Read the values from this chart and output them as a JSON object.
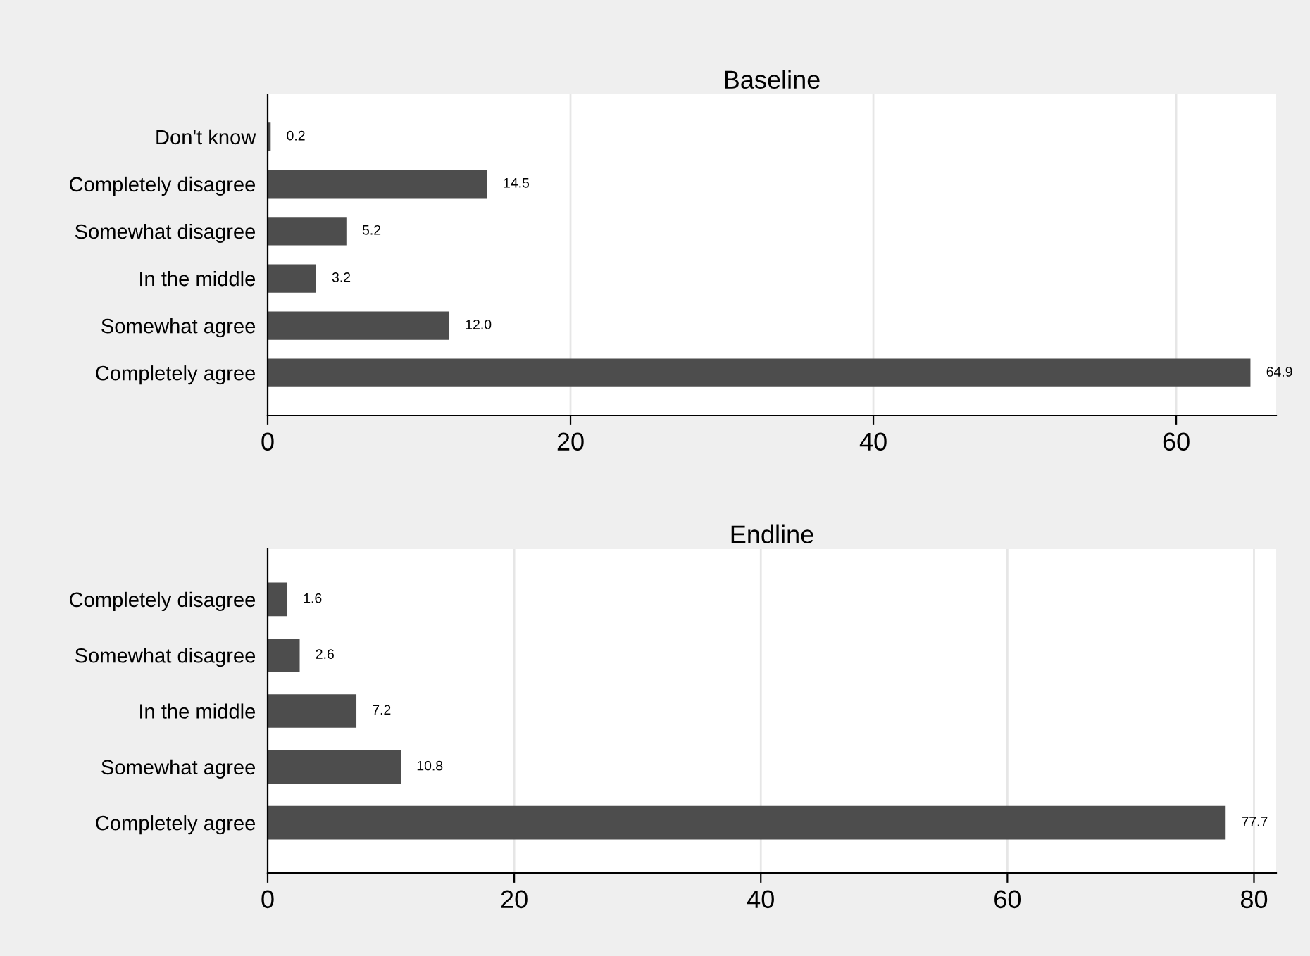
{
  "chart_data": [
    {
      "type": "bar",
      "orientation": "horizontal",
      "title": "Baseline",
      "categories": [
        "Don't know",
        "Completely disagree",
        "Somewhat disagree",
        "In the middle",
        "Somewhat agree",
        "Completely agree"
      ],
      "values": [
        0.2,
        14.5,
        5.2,
        3.2,
        12.0,
        64.9
      ],
      "value_labels": [
        "0.2",
        "14.5",
        "5.2",
        "3.2",
        "12.0",
        "64.9"
      ],
      "color": "#4d4d4d",
      "xlim": [
        0,
        66.6
      ],
      "xticks": [
        0,
        20,
        40,
        60
      ],
      "grid": "x",
      "legend": false
    },
    {
      "type": "bar",
      "orientation": "horizontal",
      "title": "Endline",
      "categories": [
        "Completely disagree",
        "Somewhat disagree",
        "In the middle",
        "Somewhat agree",
        "Completely agree"
      ],
      "values": [
        1.6,
        2.6,
        7.2,
        10.8,
        77.7
      ],
      "value_labels": [
        "1.6",
        "2.6",
        "7.2",
        "10.8",
        "77.7"
      ],
      "color": "#4d4d4d",
      "xlim": [
        0,
        81.8
      ],
      "xticks": [
        0,
        20,
        40,
        60,
        80
      ],
      "grid": "x",
      "legend": false
    }
  ]
}
